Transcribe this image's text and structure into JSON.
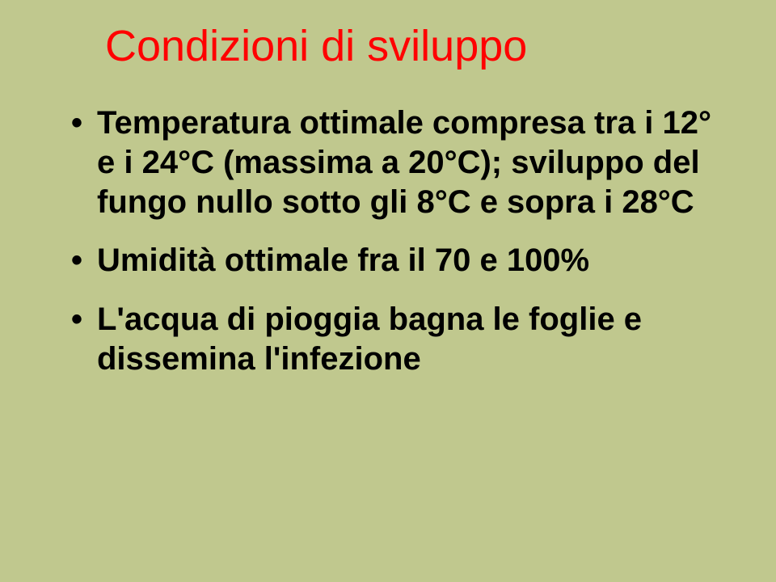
{
  "slide": {
    "title": "Condizioni di sviluppo",
    "title_color": "#ff0000",
    "title_fontsize": 54,
    "background_color": "#c0c88e",
    "bullet_color": "#000000",
    "bullet_fontsize": 40,
    "bullets": [
      "Temperatura ottimale compresa tra i 12° e i 24°C (massima a 20°C); sviluppo del fungo nullo sotto gli 8°C e sopra i 28°C",
      "Umidità ottimale fra il 70 e 100%",
      "L'acqua di pioggia bagna le foglie e dissemina l'infezione"
    ]
  }
}
